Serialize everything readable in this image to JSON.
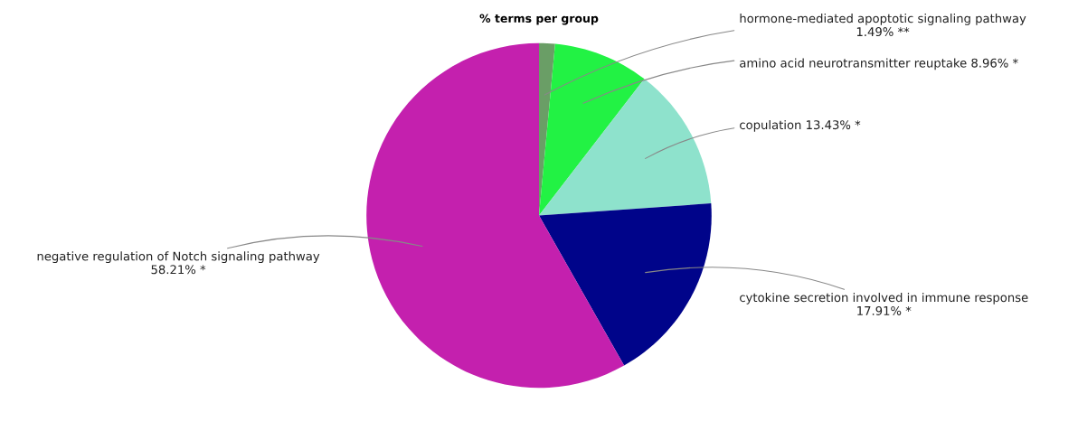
{
  "chart_data": {
    "type": "pie",
    "title": "% terms per group",
    "categories": [
      "hormone-mediated apoptotic signaling pathway",
      "amino acid neurotransmitter reuptake",
      "copulation",
      "cytokine secretion involved in immune response",
      "negative regulation of Notch signaling pathway"
    ],
    "values": [
      1.49,
      8.96,
      13.43,
      17.91,
      58.21
    ],
    "value_labels": [
      "1.49% **",
      "8.96% *",
      "13.43% *",
      "17.91% *",
      "58.21% *"
    ],
    "colors": [
      "#6a9e66",
      "#22f244",
      "#8ee2cc",
      "#00048a",
      "#c420ae"
    ]
  }
}
